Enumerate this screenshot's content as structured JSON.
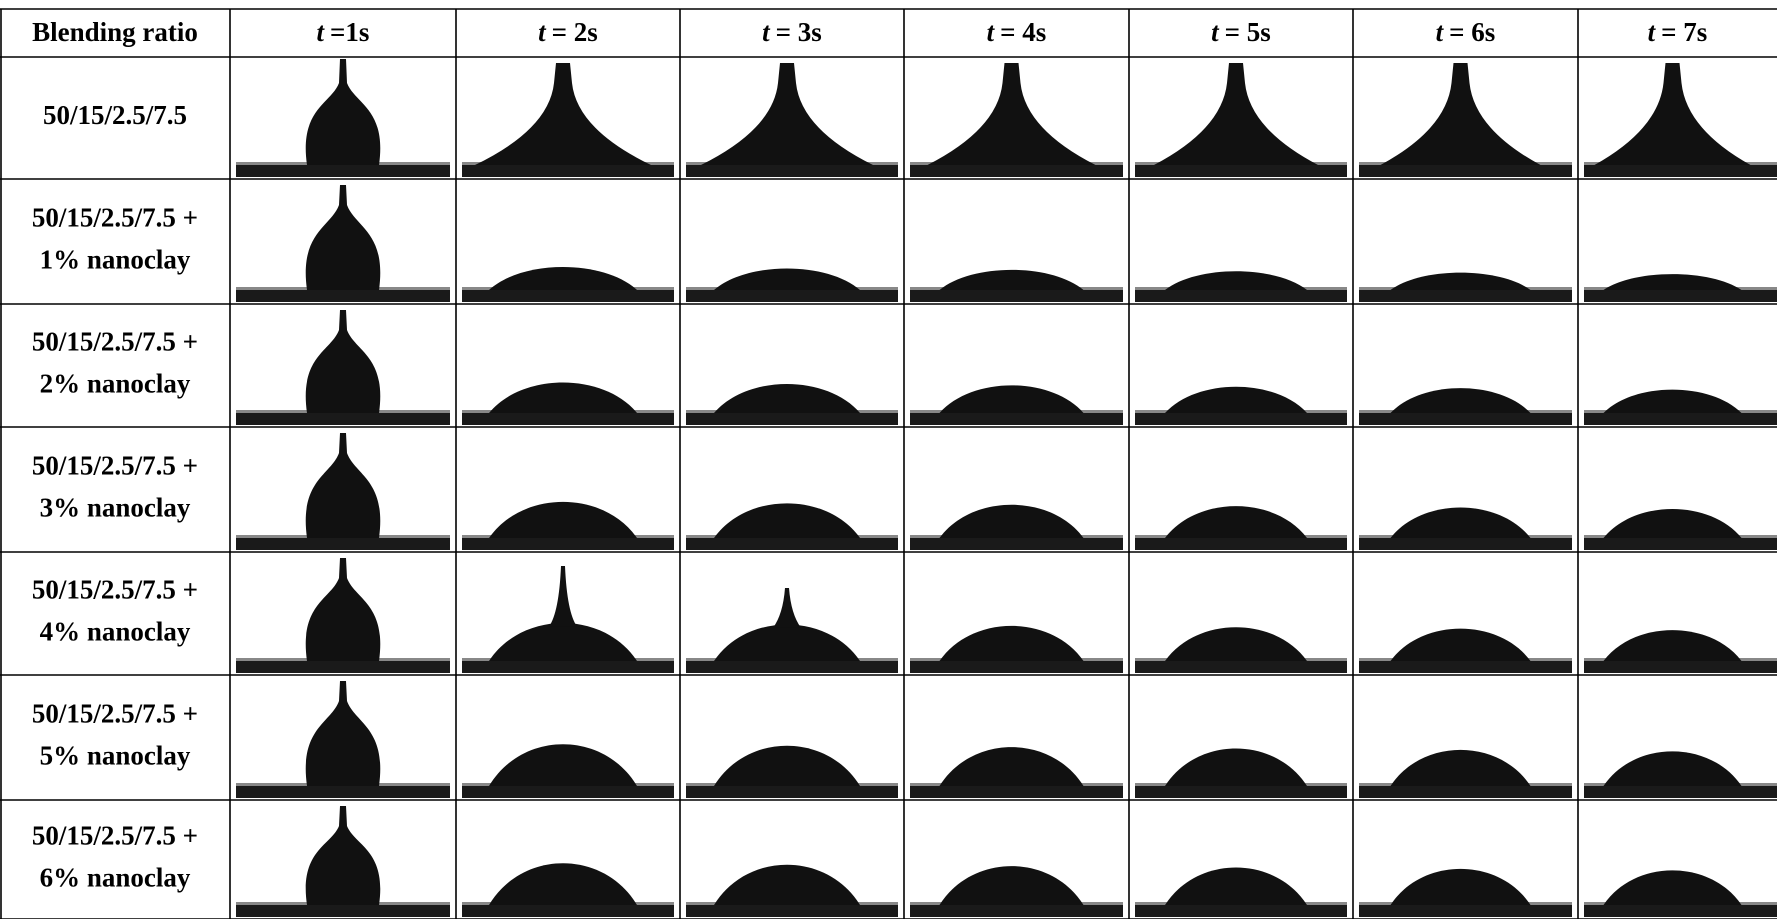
{
  "header": {
    "first": "Blending ratio",
    "times": [
      {
        "var": "t",
        "text": "=1s"
      },
      {
        "var": "t",
        "text": "= 2s"
      },
      {
        "var": "t",
        "text": "= 3s"
      },
      {
        "var": "t",
        "text": "= 4s"
      },
      {
        "var": "t",
        "text": "= 5s"
      },
      {
        "var": "t",
        "text": "= 6s"
      },
      {
        "var": "t",
        "text": "= 7s"
      }
    ]
  },
  "rows": [
    {
      "lines": [
        "50/15/2.5/7.5"
      ]
    },
    {
      "lines": [
        "50/15/2.5/7.5 +",
        "1% nanoclay"
      ]
    },
    {
      "lines": [
        "50/15/2.5/7.5 +",
        "2% nanoclay"
      ]
    },
    {
      "lines": [
        "50/15/2.5/7.5 +",
        "3% nanoclay"
      ]
    },
    {
      "lines": [
        "50/15/2.5/7.5 +",
        "4% nanoclay"
      ]
    },
    {
      "lines": [
        "50/15/2.5/7.5 +",
        "5% nanoclay"
      ]
    },
    {
      "lines": [
        "50/15/2.5/7.5 +",
        "6% nanoclay"
      ]
    }
  ]
}
